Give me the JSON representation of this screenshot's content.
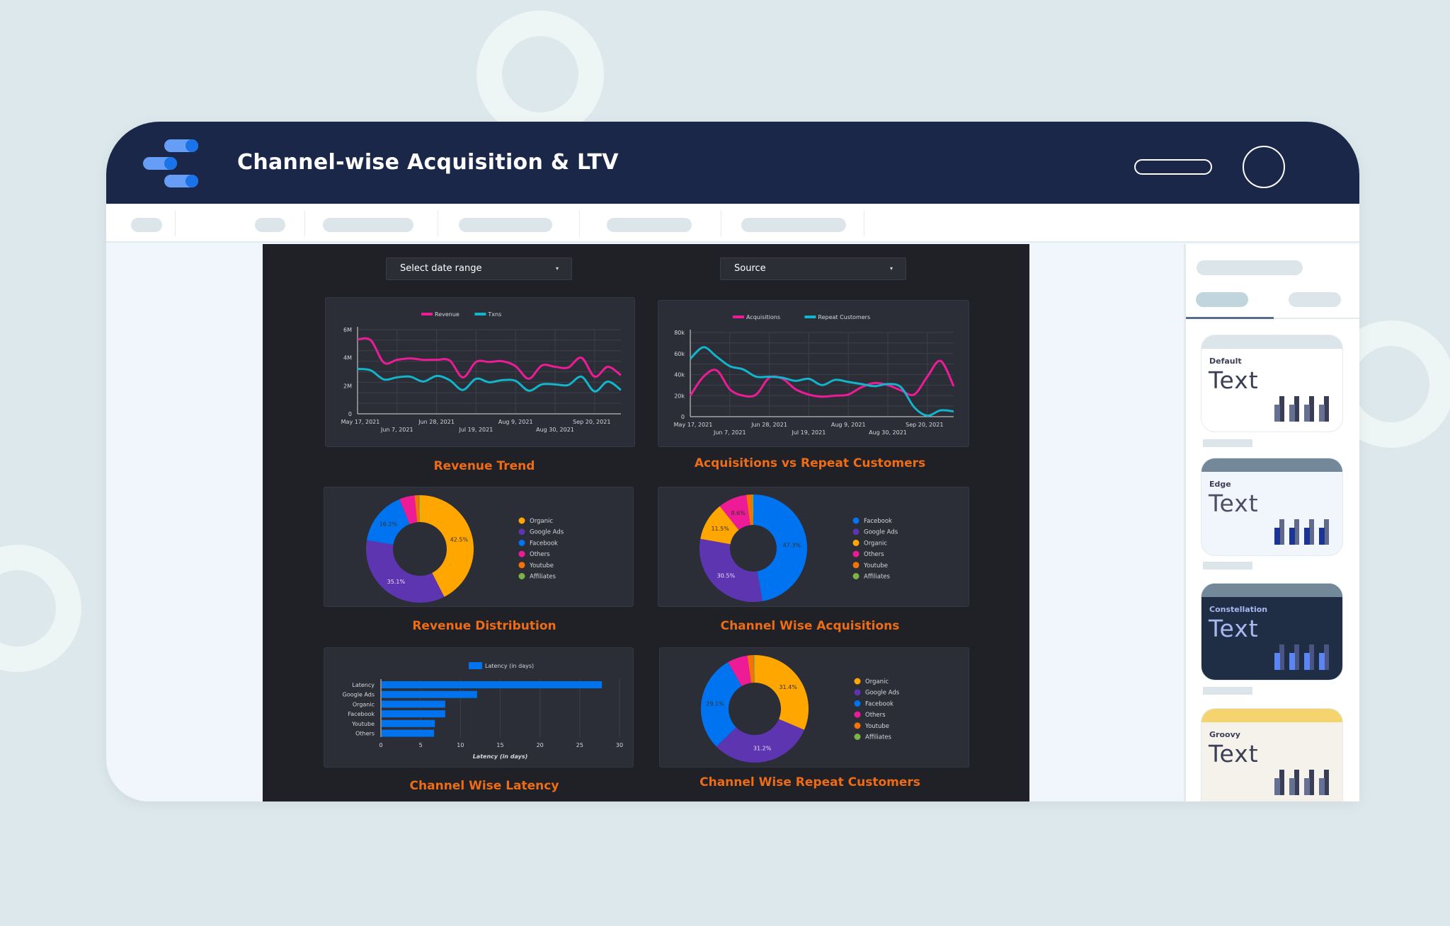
{
  "header": {
    "title": "Channel-wise Acquisition & LTV",
    "logo": "looker-studio-logo-icon"
  },
  "filters": {
    "date_range": "Select date range",
    "source": "Source",
    "caret": "▾"
  },
  "colors": {
    "pink": "#ee1b97",
    "cyan": "#12b5cb",
    "organic": "#ffa600",
    "google_ads": "#5e35b1",
    "facebook": "#0074f0",
    "others": "#ee1b97",
    "youtube": "#f57206",
    "affiliates": "#7cb342",
    "bar": "#0073ee",
    "title_orange": "#ef6c17"
  },
  "chart_data": [
    {
      "type": "line",
      "title": "Revenue Trend",
      "ylim": [
        0,
        6000000
      ],
      "yticks": [
        "0",
        "2M",
        "4M",
        "6M"
      ],
      "ytick_values": [
        0,
        2000000,
        4000000,
        6000000
      ],
      "xticks": [
        "May 17, 2021",
        "Jun 7, 2021",
        "Jun 28, 2021",
        "Jul 19, 2021",
        "Aug 9, 2021",
        "Aug 30, 2021",
        "Sep 20, 2021"
      ],
      "x_start": "May 17, 2021",
      "x_interval": "weekly",
      "grid": true,
      "legend": "top",
      "series": [
        {
          "name": "Revenue",
          "values": [
            5300000,
            5250000,
            3650000,
            3850000,
            3950000,
            3850000,
            3850000,
            3800000,
            2600000,
            3700000,
            3700000,
            3750000,
            3400000,
            2500000,
            3450000,
            3350000,
            3300000,
            4000000,
            2650000,
            3350000,
            2750000
          ]
        },
        {
          "name": "Txns",
          "values": [
            3200000,
            3100000,
            2450000,
            2600000,
            2650000,
            2300000,
            2700000,
            2400000,
            1700000,
            2500000,
            2250000,
            2400000,
            2350000,
            1650000,
            2100000,
            2100000,
            2050000,
            2650000,
            1600000,
            2300000,
            1700000
          ]
        }
      ]
    },
    {
      "type": "line",
      "title": "Acquisitions vs Repeat Customers",
      "ylim": [
        0,
        80000
      ],
      "yticks": [
        "0",
        "20k",
        "40k",
        "60k",
        "80k"
      ],
      "ytick_values": [
        0,
        20000,
        40000,
        60000,
        80000
      ],
      "xticks": [
        "May 17, 2021",
        "Jun 7, 2021",
        "Jun 28, 2021",
        "Jul 19, 2021",
        "Aug 9, 2021",
        "Aug 30, 2021",
        "Sep 20, 2021"
      ],
      "x_start": "May 17, 2021",
      "x_interval": "weekly",
      "grid": true,
      "legend": "top",
      "series": [
        {
          "name": "Acquisitions",
          "values": [
            20000,
            38000,
            44000,
            26000,
            20000,
            21000,
            37000,
            36000,
            26000,
            21000,
            19000,
            20000,
            21000,
            28000,
            32000,
            30000,
            25000,
            21000,
            38000,
            53000,
            29000
          ]
        },
        {
          "name": "Repeat Customers",
          "values": [
            55000,
            66000,
            57000,
            48000,
            45000,
            38000,
            38000,
            37000,
            34000,
            36000,
            30000,
            35000,
            33000,
            31000,
            29000,
            31000,
            28000,
            9000,
            1000,
            6000,
            5000
          ]
        }
      ]
    },
    {
      "type": "pie",
      "title": "Revenue Distribution",
      "donut": true,
      "legend": "right",
      "labels": [
        "Organic",
        "Google Ads",
        "Facebook",
        "Others",
        "Youtube",
        "Affiliates"
      ],
      "values": [
        42.5,
        35.1,
        16.2,
        4.6,
        1.3,
        0.3
      ],
      "data_labels": [
        "42.5%",
        "35.1%",
        "16.2%",
        "",
        "",
        ""
      ]
    },
    {
      "type": "pie",
      "title": "Channel Wise Acquisitions",
      "donut": true,
      "legend": "right",
      "labels": [
        "Facebook",
        "Google Ads",
        "Organic",
        "Others",
        "Youtube",
        "Affiliates"
      ],
      "values": [
        47.3,
        30.5,
        11.5,
        8.6,
        1.8,
        0.3
      ],
      "data_labels": [
        "47.3%",
        "30.5%",
        "11.5%",
        "8.6%",
        "",
        ""
      ]
    },
    {
      "type": "bar",
      "orientation": "horizontal",
      "title": "Channel Wise Latency",
      "xlabel": "Latency (in days)",
      "legend": "top",
      "series_name": "Latency (in days)",
      "categories": [
        "Latency",
        "Google Ads",
        "Organic",
        "Facebook",
        "Youtube",
        "Others"
      ],
      "values": [
        27.7,
        12,
        8,
        8,
        6.7,
        6.6
      ],
      "xlim": [
        0,
        30
      ],
      "xticks": [
        "0",
        "5",
        "10",
        "15",
        "20",
        "25",
        "30"
      ],
      "grid": true
    },
    {
      "type": "pie",
      "title": "Channel Wise Repeat Customers",
      "donut": true,
      "legend": "right",
      "labels": [
        "Organic",
        "Google Ads",
        "Facebook",
        "Others",
        "Youtube",
        "Affiliates"
      ],
      "values": [
        31.4,
        31.2,
        29.1,
        6.1,
        1.9,
        0.3
      ],
      "data_labels": [
        "31.4%",
        "31.2%",
        "29.1%",
        "",
        "",
        ""
      ]
    }
  ],
  "themes": [
    {
      "name": "Default",
      "sample": "Text"
    },
    {
      "name": "Edge",
      "sample": "Text"
    },
    {
      "name": "Constellation",
      "sample": "Text"
    },
    {
      "name": "Groovy",
      "sample": "Text"
    }
  ]
}
